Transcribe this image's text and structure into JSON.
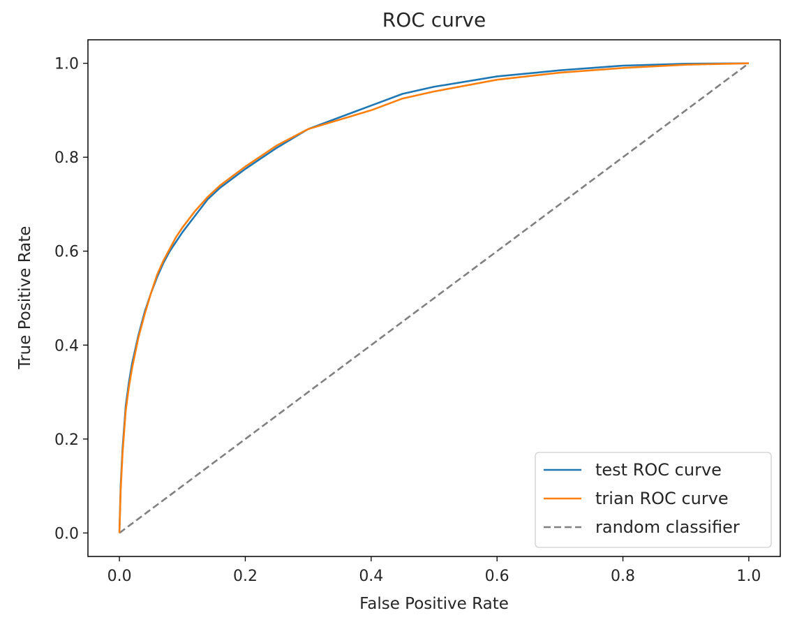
{
  "chart_data": {
    "type": "line",
    "title": "ROC curve",
    "xlabel": "False Positive Rate",
    "ylabel": "True Positive Rate",
    "xlim": [
      -0.05,
      1.05
    ],
    "ylim": [
      -0.05,
      1.05
    ],
    "xticks": [
      0.0,
      0.2,
      0.4,
      0.6,
      0.8,
      1.0
    ],
    "xtick_labels": [
      "0.0",
      "0.2",
      "0.4",
      "0.6",
      "0.8",
      "1.0"
    ],
    "yticks": [
      0.0,
      0.2,
      0.4,
      0.6,
      0.8,
      1.0
    ],
    "ytick_labels": [
      "0.0",
      "0.2",
      "0.4",
      "0.6",
      "0.8",
      "1.0"
    ],
    "grid": false,
    "legend_position": "lower-right",
    "series": [
      {
        "name": "test ROC curve",
        "color": "#1f77b4",
        "style": "solid",
        "x": [
          0.0,
          0.002,
          0.005,
          0.01,
          0.015,
          0.02,
          0.03,
          0.04,
          0.05,
          0.06,
          0.07,
          0.08,
          0.09,
          0.1,
          0.12,
          0.14,
          0.16,
          0.18,
          0.2,
          0.25,
          0.3,
          0.35,
          0.4,
          0.45,
          0.5,
          0.6,
          0.7,
          0.8,
          0.9,
          1.0
        ],
        "y": [
          0.0,
          0.1,
          0.18,
          0.27,
          0.32,
          0.36,
          0.42,
          0.47,
          0.51,
          0.545,
          0.575,
          0.6,
          0.62,
          0.64,
          0.675,
          0.71,
          0.735,
          0.755,
          0.775,
          0.82,
          0.86,
          0.885,
          0.91,
          0.935,
          0.95,
          0.972,
          0.985,
          0.995,
          0.999,
          1.0
        ]
      },
      {
        "name": "trian ROC curve",
        "color": "#ff7f0e",
        "style": "solid",
        "x": [
          0.0,
          0.002,
          0.005,
          0.01,
          0.015,
          0.02,
          0.03,
          0.04,
          0.05,
          0.06,
          0.07,
          0.08,
          0.09,
          0.1,
          0.12,
          0.14,
          0.16,
          0.18,
          0.2,
          0.25,
          0.3,
          0.35,
          0.4,
          0.45,
          0.5,
          0.6,
          0.7,
          0.8,
          0.9,
          1.0
        ],
        "y": [
          0.0,
          0.09,
          0.17,
          0.26,
          0.31,
          0.35,
          0.415,
          0.465,
          0.51,
          0.55,
          0.58,
          0.605,
          0.63,
          0.65,
          0.685,
          0.715,
          0.74,
          0.76,
          0.78,
          0.825,
          0.86,
          0.88,
          0.9,
          0.925,
          0.94,
          0.965,
          0.98,
          0.99,
          0.997,
          1.0
        ]
      },
      {
        "name": "random classifier",
        "color": "#808080",
        "style": "dashed",
        "x": [
          0.0,
          1.0
        ],
        "y": [
          0.0,
          1.0
        ]
      }
    ]
  }
}
